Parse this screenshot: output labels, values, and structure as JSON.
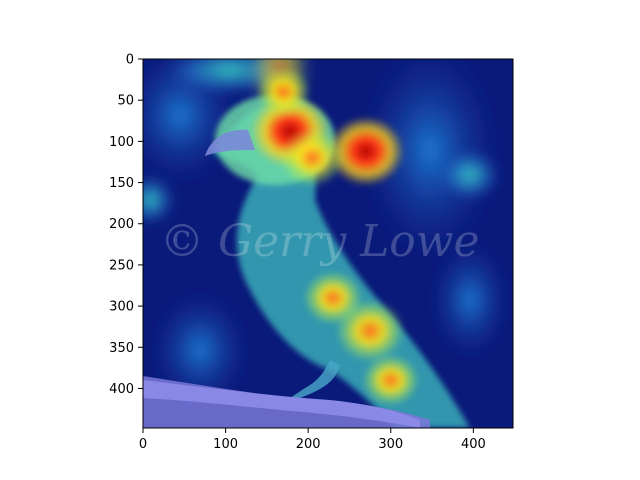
{
  "plot": {
    "type": "image-heatmap-overlay",
    "subject": "bird-on-branch",
    "colormap": "jet",
    "xlim": [
      0,
      448
    ],
    "ylim": [
      448,
      0
    ],
    "x_ticks": [
      0,
      100,
      200,
      300,
      400
    ],
    "y_ticks": [
      0,
      50,
      100,
      150,
      200,
      250,
      300,
      350,
      400
    ],
    "watermark": "© Gerry Lowe",
    "hotspots": [
      {
        "x": 178,
        "y": 88,
        "value": 1.0
      },
      {
        "x": 270,
        "y": 112,
        "value": 0.95
      },
      {
        "x": 205,
        "y": 120,
        "value": 0.7
      },
      {
        "x": 275,
        "y": 330,
        "value": 0.8
      },
      {
        "x": 230,
        "y": 290,
        "value": 0.6
      },
      {
        "x": 300,
        "y": 390,
        "value": 0.55
      },
      {
        "x": 170,
        "y": 40,
        "value": 0.5
      }
    ]
  },
  "colors": {
    "background": "#0a1a7a",
    "bird_body": "#3fc0c0",
    "branch": "#7a78d8",
    "axis": "#000000"
  }
}
